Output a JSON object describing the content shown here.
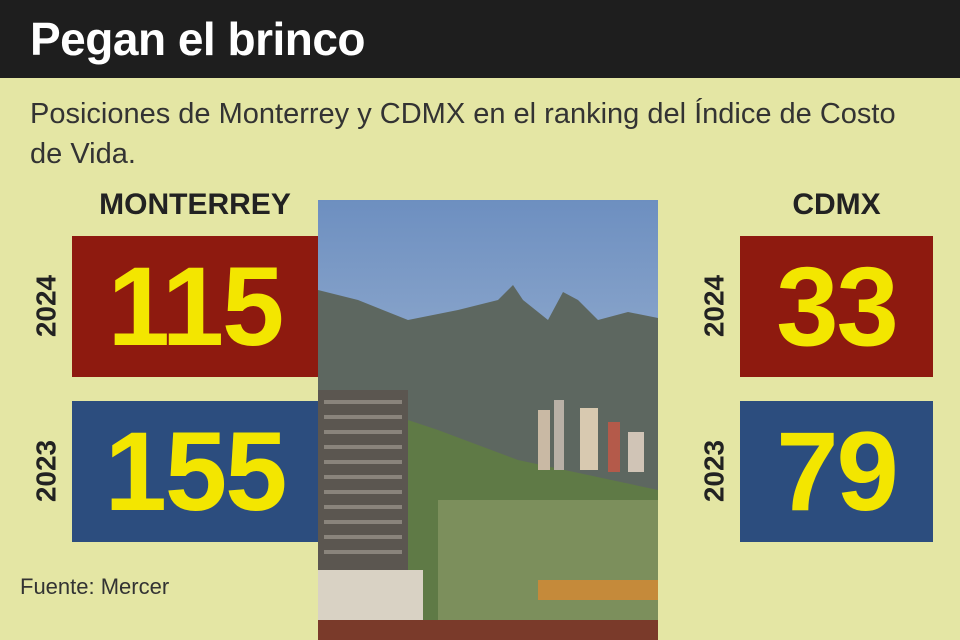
{
  "header": {
    "title": "Pegan el brinco"
  },
  "subtitle": "Posiciones de Monterrey y CDMX en el ranking del Índice de Costo de Vida.",
  "cities": [
    {
      "name": "MONTERREY",
      "rankings": [
        {
          "year": 2024,
          "value": 115
        },
        {
          "year": 2023,
          "value": 155
        }
      ]
    },
    {
      "name": "CDMX",
      "rankings": [
        {
          "year": 2024,
          "value": 33
        },
        {
          "year": 2023,
          "value": 79
        }
      ]
    }
  ],
  "source": "Fuente: Mercer"
}
